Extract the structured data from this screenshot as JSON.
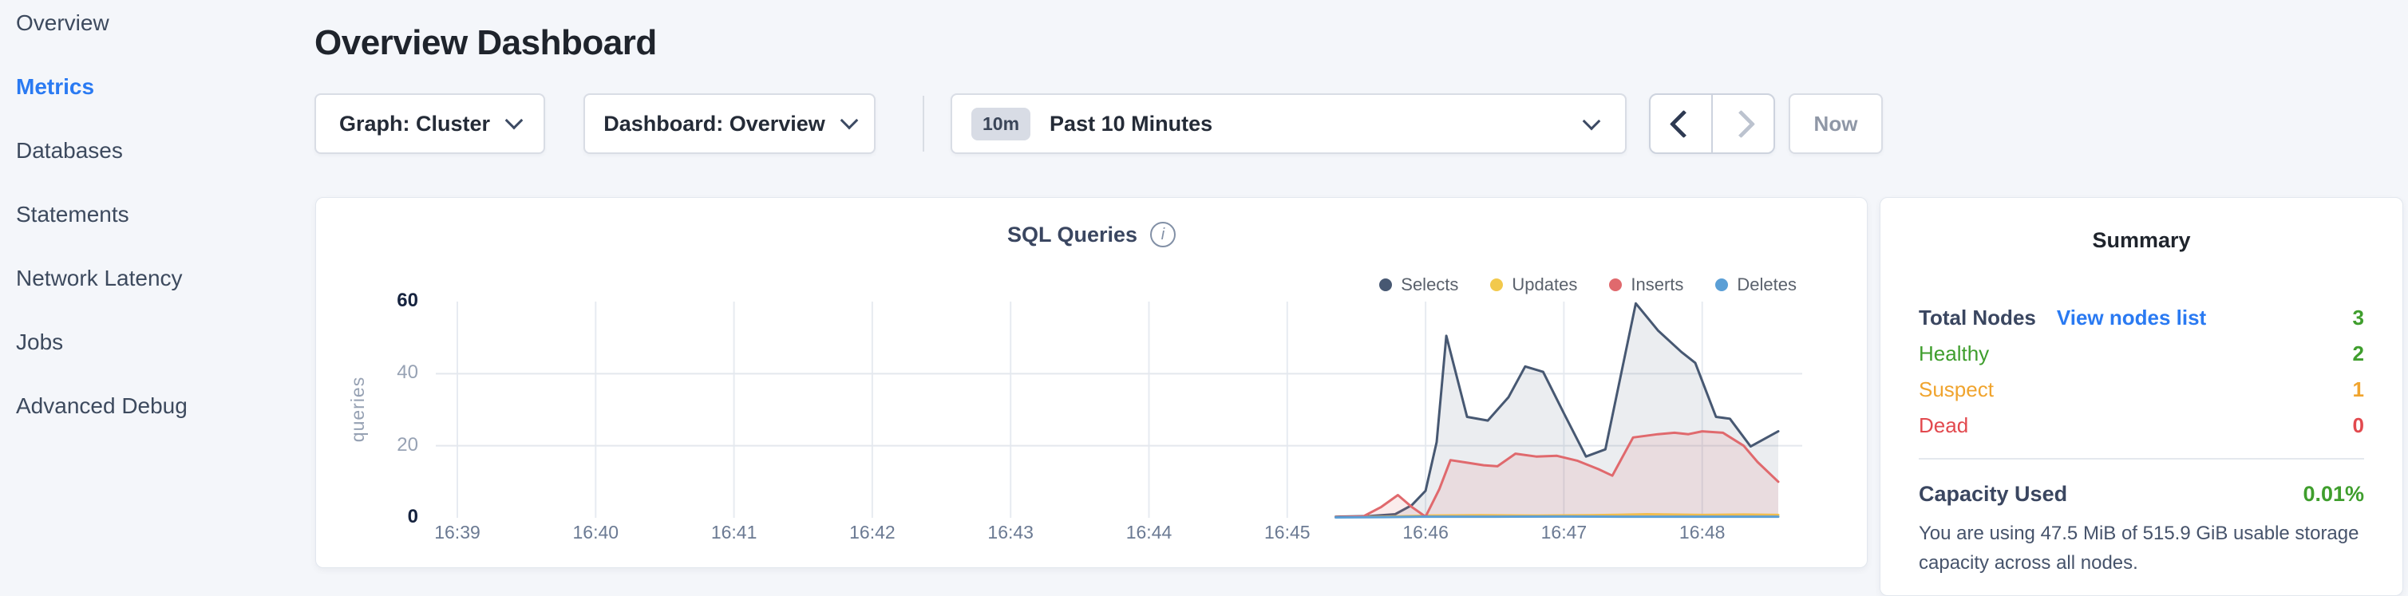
{
  "header": {
    "title": "Overview Dashboard"
  },
  "sidebar": {
    "items": [
      {
        "label": "Overview",
        "active": false
      },
      {
        "label": "Metrics",
        "active": true
      },
      {
        "label": "Databases",
        "active": false
      },
      {
        "label": "Statements",
        "active": false
      },
      {
        "label": "Network Latency",
        "active": false
      },
      {
        "label": "Jobs",
        "active": false
      },
      {
        "label": "Advanced Debug",
        "active": false
      }
    ]
  },
  "colors": {
    "accent_blue": "#2a7af2",
    "green": "#3f9e2d",
    "orange": "#f0a42e",
    "red": "#e2494e"
  },
  "controls": {
    "graph_dropdown": "Graph: Cluster",
    "dashboard_dropdown": "Dashboard: Overview",
    "time_badge": "10m",
    "time_label": "Past 10 Minutes",
    "now_label": "Now"
  },
  "icons": {
    "info": "i"
  },
  "chart_data": {
    "type": "area",
    "title": "SQL Queries",
    "xlabel": "",
    "ylabel": "queries",
    "ylim": [
      0,
      60
    ],
    "xlim": [
      -0.05,
      9.75
    ],
    "grid": {
      "y_values": [
        20,
        40
      ],
      "vertical_at_each_minute": true
    },
    "legend_position": "top-right",
    "xticks": [
      {
        "x": 0,
        "label": "16:39"
      },
      {
        "x": 1,
        "label": "16:40"
      },
      {
        "x": 2,
        "label": "16:41"
      },
      {
        "x": 3,
        "label": "16:42"
      },
      {
        "x": 4,
        "label": "16:43"
      },
      {
        "x": 5,
        "label": "16:44"
      },
      {
        "x": 6,
        "label": "16:45"
      },
      {
        "x": 7,
        "label": "16:46"
      },
      {
        "x": 8,
        "label": "16:47"
      },
      {
        "x": 9,
        "label": "16:48"
      }
    ],
    "yticks": [
      {
        "y": 0,
        "label": "0",
        "strong": true
      },
      {
        "y": 20,
        "label": "20",
        "strong": false
      },
      {
        "y": 40,
        "label": "40",
        "strong": false
      },
      {
        "y": 60,
        "label": "60",
        "strong": true
      }
    ],
    "series": [
      {
        "name": "Selects",
        "color": "#475872",
        "fill": "rgba(71,88,114,0.11)",
        "points": [
          [
            6.35,
            0.3
          ],
          [
            6.6,
            0.5
          ],
          [
            6.78,
            1.0
          ],
          [
            6.9,
            3.5
          ],
          [
            7.0,
            7.5
          ],
          [
            7.08,
            21
          ],
          [
            7.15,
            50.5
          ],
          [
            7.3,
            28
          ],
          [
            7.45,
            27
          ],
          [
            7.6,
            33.5
          ],
          [
            7.72,
            42
          ],
          [
            7.85,
            40.5
          ],
          [
            8.0,
            29
          ],
          [
            8.16,
            17
          ],
          [
            8.3,
            19
          ],
          [
            8.52,
            59.5
          ],
          [
            8.68,
            52
          ],
          [
            8.85,
            46
          ],
          [
            8.95,
            43
          ],
          [
            9.1,
            28
          ],
          [
            9.2,
            27.5
          ],
          [
            9.35,
            19.8
          ],
          [
            9.55,
            24
          ]
        ]
      },
      {
        "name": "Updates",
        "color": "#f2c94c",
        "fill": "rgba(242,201,76,0.10)",
        "points": [
          [
            6.35,
            0.2
          ],
          [
            6.7,
            0.3
          ],
          [
            7.0,
            0.6
          ],
          [
            7.4,
            0.7
          ],
          [
            7.8,
            0.6
          ],
          [
            8.2,
            0.7
          ],
          [
            8.6,
            1.0
          ],
          [
            9.0,
            0.8
          ],
          [
            9.3,
            0.9
          ],
          [
            9.55,
            0.8
          ]
        ]
      },
      {
        "name": "Inserts",
        "color": "#e0696d",
        "fill": "rgba(224,105,109,0.13)",
        "points": [
          [
            6.35,
            0.2
          ],
          [
            6.55,
            0.4
          ],
          [
            6.68,
            3
          ],
          [
            6.8,
            6.3
          ],
          [
            6.9,
            3
          ],
          [
            7.0,
            0.3
          ],
          [
            7.1,
            8
          ],
          [
            7.18,
            16
          ],
          [
            7.3,
            15.3
          ],
          [
            7.42,
            14.6
          ],
          [
            7.52,
            14.3
          ],
          [
            7.65,
            17.8
          ],
          [
            7.8,
            17
          ],
          [
            7.95,
            17.2
          ],
          [
            8.1,
            15.8
          ],
          [
            8.25,
            13.5
          ],
          [
            8.35,
            11.7
          ],
          [
            8.5,
            22.3
          ],
          [
            8.68,
            23.2
          ],
          [
            8.8,
            23.6
          ],
          [
            8.9,
            23.2
          ],
          [
            9.0,
            24
          ],
          [
            9.15,
            23.6
          ],
          [
            9.3,
            20
          ],
          [
            9.4,
            15.5
          ],
          [
            9.55,
            10
          ]
        ]
      },
      {
        "name": "Deletes",
        "color": "#5b9fd6",
        "fill": "rgba(91,159,214,0.10)",
        "points": [
          [
            6.35,
            0.1
          ],
          [
            6.7,
            0.2
          ],
          [
            7.0,
            0.3
          ],
          [
            7.5,
            0.3
          ],
          [
            8.0,
            0.35
          ],
          [
            8.5,
            0.3
          ],
          [
            9.0,
            0.3
          ],
          [
            9.55,
            0.3
          ]
        ]
      }
    ]
  },
  "summary": {
    "title": "Summary",
    "rows": [
      {
        "label": "Total Nodes",
        "bold": true,
        "label_color": "#3a4660",
        "link": "View nodes list",
        "link_color": "#2a7af2",
        "value": "3",
        "value_color": "#3f9e2d"
      },
      {
        "label": "Healthy",
        "bold": false,
        "label_color": "#3f9e2d",
        "value": "2",
        "value_color": "#3f9e2d"
      },
      {
        "label": "Suspect",
        "bold": false,
        "label_color": "#f0a42e",
        "value": "1",
        "value_color": "#f0a42e"
      },
      {
        "label": "Dead",
        "bold": false,
        "label_color": "#e2494e",
        "value": "0",
        "value_color": "#e2494e"
      }
    ],
    "capacity": {
      "label": "Capacity Used",
      "value": "0.01%",
      "value_color": "#3f9e2d",
      "description": "You are using 47.5 MiB of 515.9 GiB usable storage capacity across all nodes."
    }
  }
}
